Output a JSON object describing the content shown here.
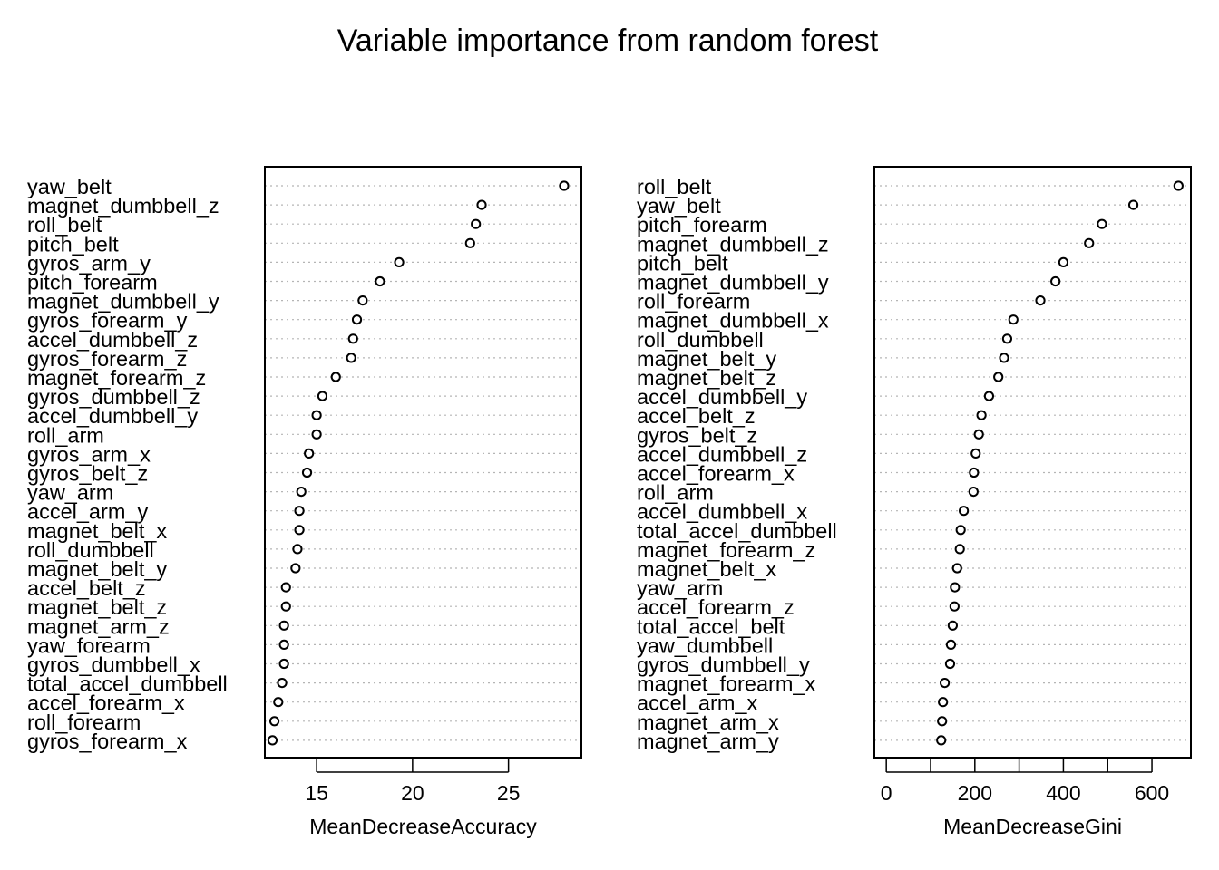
{
  "title": "Variable importance from random forest",
  "chart_data": [
    {
      "type": "scatter",
      "subtype": "dotchart",
      "xlabel": "MeanDecreaseAccuracy",
      "xlim": [
        12.3,
        28.8
      ],
      "xticks": [
        15,
        20,
        25
      ],
      "grid": "dotted horizontal lines per row",
      "labels": [
        "yaw_belt",
        "magnet_dumbbell_z",
        "roll_belt",
        "pitch_belt",
        "gyros_arm_y",
        "pitch_forearm",
        "magnet_dumbbell_y",
        "gyros_forearm_y",
        "accel_dumbbell_z",
        "gyros_forearm_z",
        "magnet_forearm_z",
        "gyros_dumbbell_z",
        "accel_dumbbell_y",
        "roll_arm",
        "gyros_arm_x",
        "gyros_belt_z",
        "yaw_arm",
        "accel_arm_y",
        "magnet_belt_x",
        "roll_dumbbell",
        "magnet_belt_y",
        "accel_belt_z",
        "magnet_belt_z",
        "magnet_arm_z",
        "yaw_forearm",
        "gyros_dumbbell_x",
        "total_accel_dumbbell",
        "accel_forearm_x",
        "roll_forearm",
        "gyros_forearm_x"
      ],
      "values": [
        27.9,
        23.6,
        23.3,
        23.0,
        19.3,
        18.3,
        17.4,
        17.1,
        16.9,
        16.8,
        16.0,
        15.3,
        15.0,
        15.0,
        14.6,
        14.5,
        14.2,
        14.1,
        14.1,
        14.0,
        13.9,
        13.4,
        13.4,
        13.3,
        13.3,
        13.3,
        13.2,
        13.0,
        12.8,
        12.7
      ]
    },
    {
      "type": "scatter",
      "subtype": "dotchart",
      "xlabel": "MeanDecreaseGini",
      "xlim": [
        -27,
        688
      ],
      "xticks": [
        0,
        200,
        400,
        600
      ],
      "minor_ticks": [
        100,
        300,
        500
      ],
      "grid": "dotted horizontal lines per row",
      "labels": [
        "roll_belt",
        "yaw_belt",
        "pitch_forearm",
        "magnet_dumbbell_z",
        "pitch_belt",
        "magnet_dumbbell_y",
        "roll_forearm",
        "magnet_dumbbell_x",
        "roll_dumbbell",
        "magnet_belt_y",
        "magnet_belt_z",
        "accel_dumbbell_y",
        "accel_belt_z",
        "gyros_belt_z",
        "accel_dumbbell_z",
        "accel_forearm_x",
        "roll_arm",
        "accel_dumbbell_x",
        "total_accel_dumbbell",
        "magnet_forearm_z",
        "magnet_belt_x",
        "yaw_arm",
        "accel_forearm_z",
        "total_accel_belt",
        "yaw_dumbbell",
        "gyros_dumbbell_y",
        "magnet_forearm_x",
        "accel_arm_x",
        "magnet_arm_x",
        "magnet_arm_y"
      ],
      "values": [
        660,
        558,
        487,
        458,
        400,
        382,
        348,
        287,
        273,
        266,
        253,
        232,
        215,
        209,
        202,
        198,
        197,
        175,
        168,
        166,
        160,
        155,
        154,
        150,
        146,
        144,
        132,
        128,
        126,
        124
      ]
    }
  ]
}
